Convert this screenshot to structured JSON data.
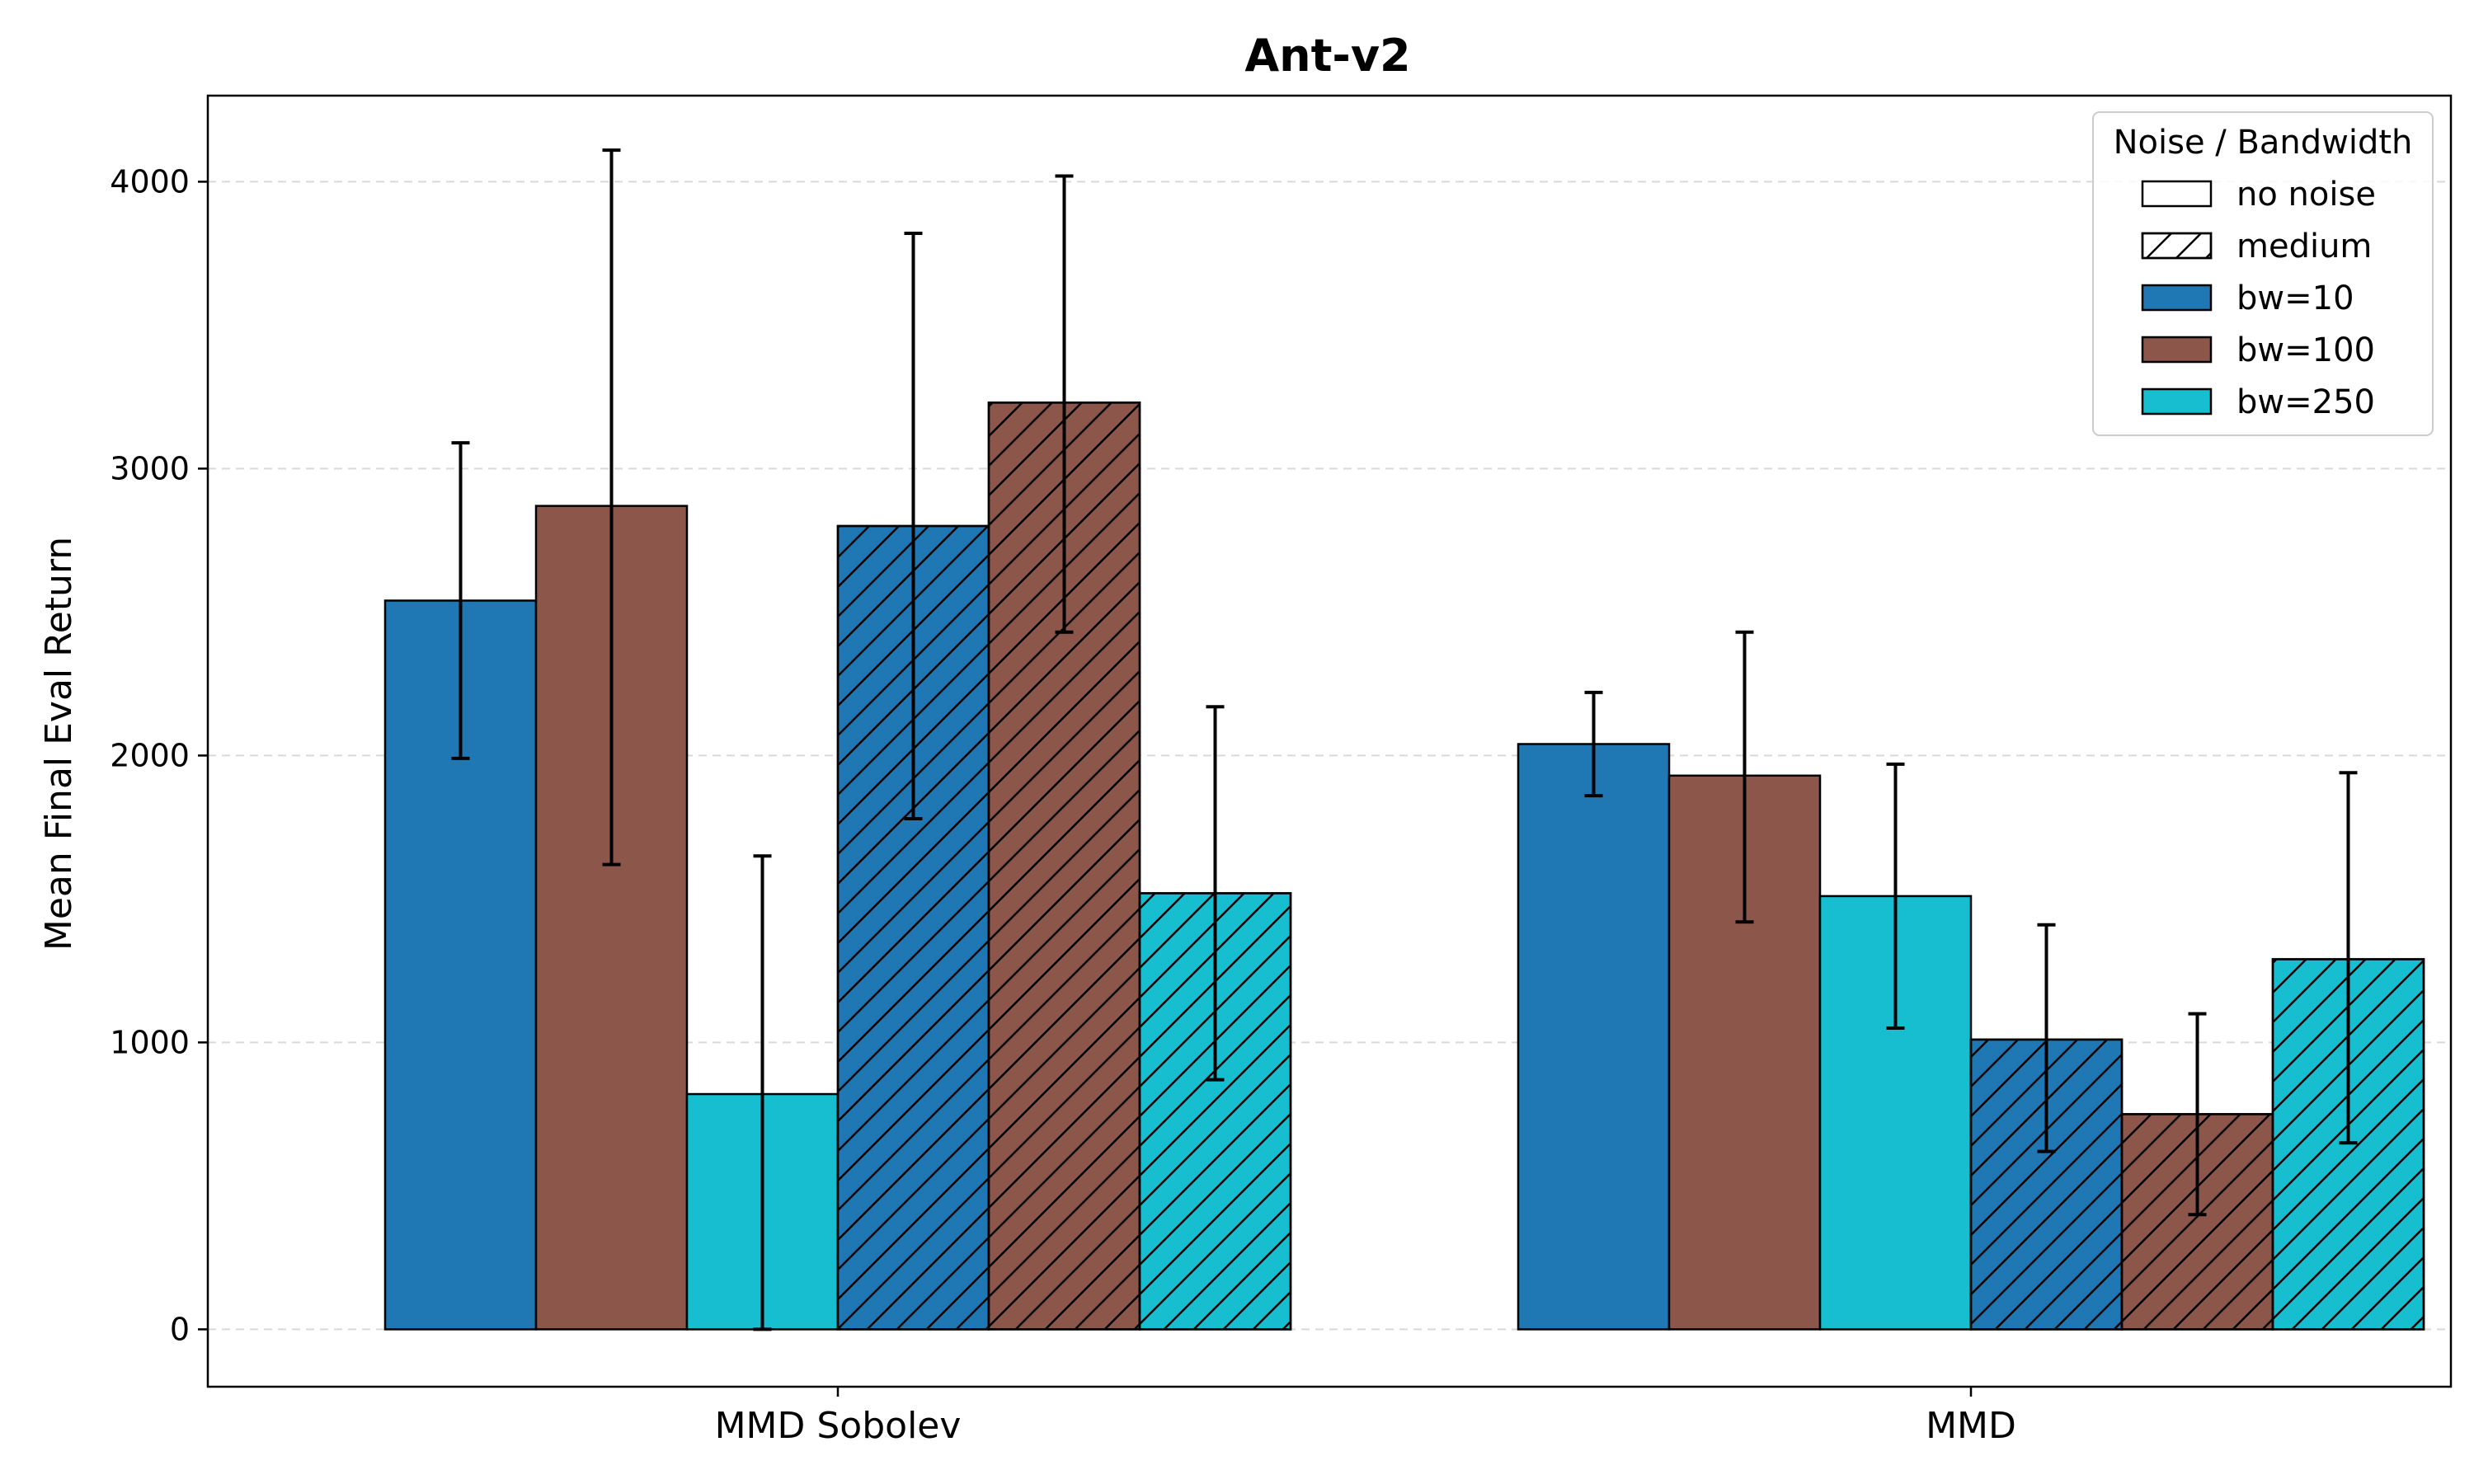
{
  "chart_data": {
    "type": "bar",
    "title": "Ant-v2",
    "xlabel": "",
    "ylabel": "Mean Final Eval Return",
    "ylim": [
      -200,
      4300
    ],
    "yticks": [
      0,
      1000,
      2000,
      3000,
      4000
    ],
    "grid": "y-dashed",
    "categories": [
      "MMD Sobolev",
      "MMD"
    ],
    "series": [
      {
        "name": "bw=10, no noise",
        "bandwidth": "bw=10",
        "noise": "no noise",
        "color": "#1f77b4",
        "values": [
          2540,
          2040
        ],
        "err_low": [
          1990,
          1860
        ],
        "err_high": [
          3090,
          2220
        ]
      },
      {
        "name": "bw=100, no noise",
        "bandwidth": "bw=100",
        "noise": "no noise",
        "color": "#8c564b",
        "values": [
          2870,
          1930
        ],
        "err_low": [
          1620,
          1420
        ],
        "err_high": [
          4110,
          2430
        ]
      },
      {
        "name": "bw=250, no noise",
        "bandwidth": "bw=250",
        "noise": "no noise",
        "color": "#17becf",
        "values": [
          820,
          1510
        ],
        "err_low": [
          0,
          1050
        ],
        "err_high": [
          1650,
          1970
        ]
      },
      {
        "name": "bw=10, medium",
        "bandwidth": "bw=10",
        "noise": "medium",
        "color": "#1f77b4",
        "values": [
          2800,
          1010
        ],
        "err_low": [
          1780,
          620
        ],
        "err_high": [
          3820,
          1410
        ]
      },
      {
        "name": "bw=100, medium",
        "bandwidth": "bw=100",
        "noise": "medium",
        "color": "#8c564b",
        "values": [
          3230,
          750
        ],
        "err_low": [
          2430,
          400
        ],
        "err_high": [
          4020,
          1100
        ]
      },
      {
        "name": "bw=250, medium",
        "bandwidth": "bw=250",
        "noise": "medium",
        "color": "#17becf",
        "values": [
          1520,
          1290
        ],
        "err_low": [
          870,
          650
        ],
        "err_high": [
          2170,
          1940
        ]
      }
    ],
    "legend": {
      "title": "Noise / Bandwidth",
      "placement": "top-right",
      "entries": [
        {
          "label": "no noise",
          "color": "#ffffff",
          "hatched": false
        },
        {
          "label": "medium",
          "color": "#ffffff",
          "hatched": true
        },
        {
          "label": "bw=10",
          "color": "#1f77b4",
          "hatched": false
        },
        {
          "label": "bw=100",
          "color": "#8c564b",
          "hatched": false
        },
        {
          "label": "bw=250",
          "color": "#17becf",
          "hatched": false
        }
      ]
    }
  }
}
